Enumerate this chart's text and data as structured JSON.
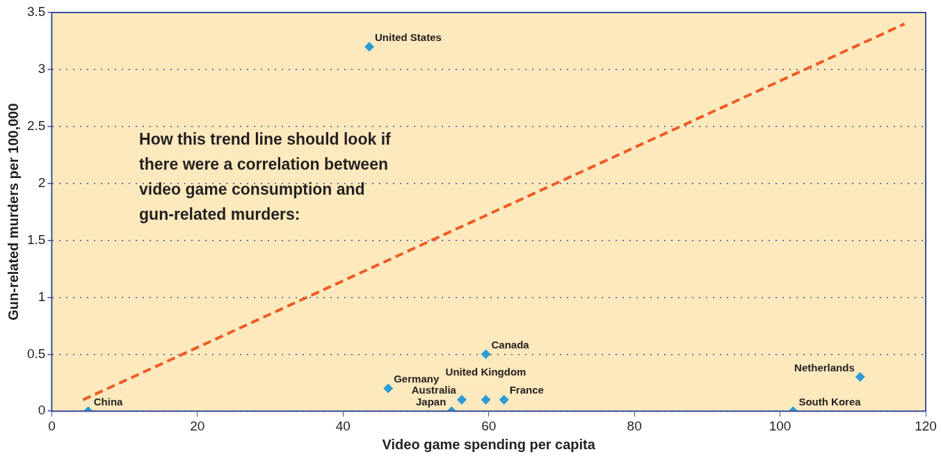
{
  "chart_data": {
    "type": "scatter",
    "xlabel": "Video game spending per capita",
    "ylabel": "Gun-related murders per 100,000",
    "xlim": [
      0,
      120
    ],
    "xticks": [
      0,
      20,
      40,
      60,
      80,
      100,
      120
    ],
    "ylim": [
      0,
      3.5
    ],
    "yticks": [
      0,
      0.5,
      1,
      1.5,
      2,
      2.5,
      3,
      3.5
    ],
    "grid": "y",
    "legend": false,
    "marker": "diamond",
    "series": [
      {
        "color": "#2e9bd6",
        "x": [
          5,
          43.6,
          46.2,
          54.9,
          56.3,
          59.6,
          59.6,
          62.1,
          101.8,
          111
        ],
        "values": [
          0,
          3.2,
          0.2,
          0,
          0.1,
          0.1,
          0.5,
          0.1,
          0,
          0.3
        ]
      },
      {
        "type": "line",
        "color": "#ef5a24",
        "line_style": "dashed",
        "marker": "none",
        "x": [
          4.3,
          117.1
        ],
        "values": [
          0.1,
          3.4
        ]
      }
    ],
    "annotations": [
      "How this trend line should look if there were a correlation between video game consumption and gun-related murders:",
      {
        "text": "China",
        "x": 5,
        "y": 0
      },
      {
        "text": "United States",
        "x": 43.6,
        "y": 3.2
      },
      {
        "text": "Germany",
        "x": 46.2,
        "y": 0.2
      },
      {
        "text": "Japan",
        "x": 54.9,
        "y": 0
      },
      {
        "text": "Australia",
        "x": 56.3,
        "y": 0.1
      },
      {
        "text": "United Kingdom",
        "x": 59.6,
        "y": 0.1
      },
      {
        "text": "Canada",
        "x": 59.6,
        "y": 0.5
      },
      {
        "text": "France",
        "x": 62.1,
        "y": 0.1
      },
      {
        "text": "South Korea",
        "x": 101.8,
        "y": 0
      },
      {
        "text": "Netherlands",
        "x": 111,
        "y": 0.3
      }
    ]
  }
}
